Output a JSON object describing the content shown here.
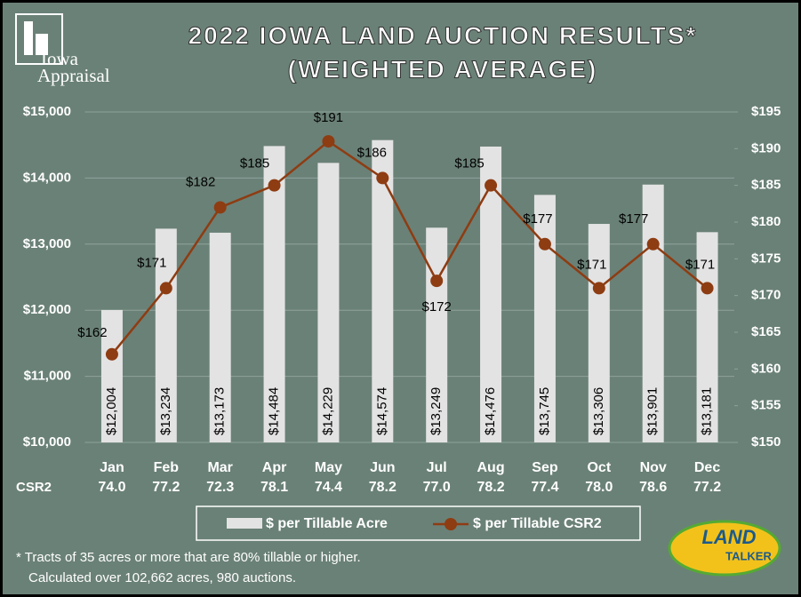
{
  "logo": {
    "line1": "Iowa",
    "line2": "Appraisal"
  },
  "badge": {
    "line1": "LAND",
    "line2": "TALKER"
  },
  "chart_data": {
    "type": "bar-line",
    "title": "2022 IOWA LAND AUCTION RESULTS*",
    "subtitle": "(WEIGHTED AVERAGE)",
    "categories": [
      "Jan",
      "Feb",
      "Mar",
      "Apr",
      "May",
      "Jun",
      "Jul",
      "Aug",
      "Sep",
      "Oct",
      "Nov",
      "Dec"
    ],
    "row_label": "CSR2",
    "row_values": [
      "74.0",
      "77.2",
      "72.3",
      "78.1",
      "74.4",
      "78.2",
      "77.0",
      "78.2",
      "77.4",
      "78.0",
      "78.6",
      "77.2"
    ],
    "series": [
      {
        "name": "$ per Tillable Acre",
        "type": "bar",
        "color": "#e3e3e3",
        "axis": "y",
        "values": [
          12004,
          13234,
          13173,
          14484,
          14229,
          14574,
          13249,
          14476,
          13745,
          13306,
          13901,
          13181
        ],
        "value_labels": [
          "$12,004",
          "$13,234",
          "$13,173",
          "$14,484",
          "$14,229",
          "$14,574",
          "$13,249",
          "$14,476",
          "$13,745",
          "$13,306",
          "$13,901",
          "$13,181"
        ]
      },
      {
        "name": "$ per Tillable CSR2",
        "type": "line",
        "color": "#8e3c12",
        "axis": "y2",
        "values": [
          162,
          171,
          182,
          185,
          191,
          186,
          172,
          185,
          177,
          171,
          177,
          171
        ],
        "value_labels": [
          "$162",
          "$171",
          "$182",
          "$185",
          "$191",
          "$186",
          "$172",
          "$185",
          "$177",
          "$171",
          "$177",
          "$171"
        ]
      }
    ],
    "ylim": [
      10000,
      15000
    ],
    "yticks": [
      {
        "value": 10000,
        "label": "$10,000"
      },
      {
        "value": 11000,
        "label": "$11,000"
      },
      {
        "value": 12000,
        "label": "$12,000"
      },
      {
        "value": 13000,
        "label": "$13,000"
      },
      {
        "value": 14000,
        "label": "$14,000"
      },
      {
        "value": 15000,
        "label": "$15,000"
      }
    ],
    "y2lim": [
      150,
      195
    ],
    "y2ticks": [
      {
        "value": 150,
        "label": "$150"
      },
      {
        "value": 155,
        "label": "$155"
      },
      {
        "value": 160,
        "label": "$160"
      },
      {
        "value": 165,
        "label": "$165"
      },
      {
        "value": 170,
        "label": "$170"
      },
      {
        "value": 175,
        "label": "$175"
      },
      {
        "value": 180,
        "label": "$180"
      },
      {
        "value": 185,
        "label": "$185"
      },
      {
        "value": 190,
        "label": "$190"
      },
      {
        "value": 195,
        "label": "$195"
      }
    ],
    "grid": true,
    "legend": "bottom",
    "footnotes": [
      "* Tracts of 35 acres or more that are 80% tillable or higher.",
      "Calculated over 102,662 acres, 980 auctions."
    ]
  }
}
